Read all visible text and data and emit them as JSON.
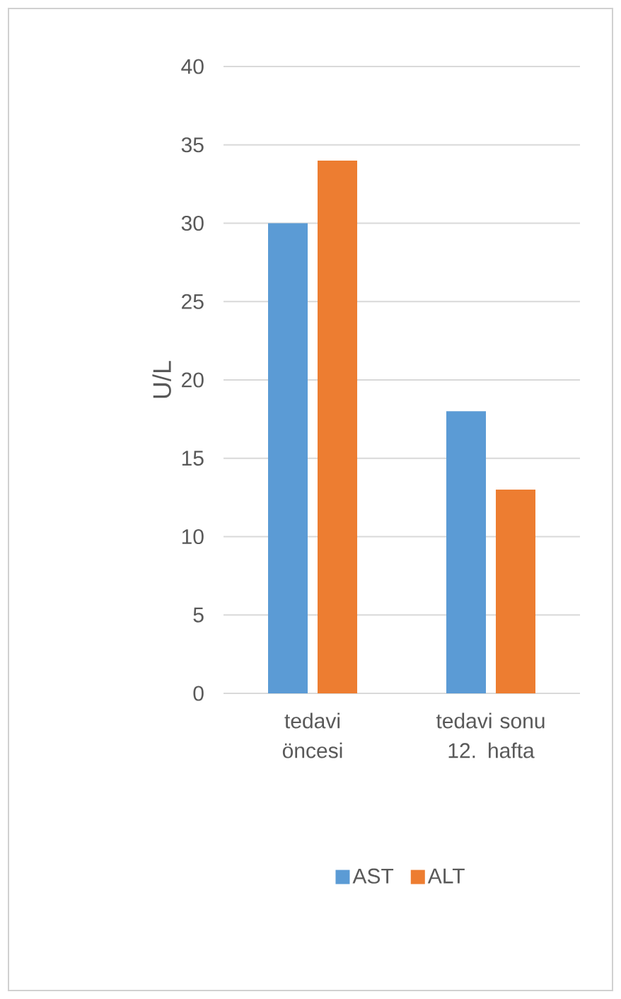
{
  "chart_data": {
    "type": "bar",
    "ylabel": "U/L",
    "categories": [
      "tedavi öncesi",
      "tedavi sonu 12. hafta"
    ],
    "series": [
      {
        "name": "AST",
        "color": "#5b9bd5",
        "values": [
          30,
          18
        ]
      },
      {
        "name": "ALT",
        "color": "#ed7d31",
        "values": [
          34,
          13
        ]
      }
    ],
    "ylim": [
      0,
      40
    ],
    "yticks": [
      0,
      5,
      10,
      15,
      20,
      25,
      30,
      35,
      40
    ],
    "grid": "y",
    "legend": "bottom"
  }
}
